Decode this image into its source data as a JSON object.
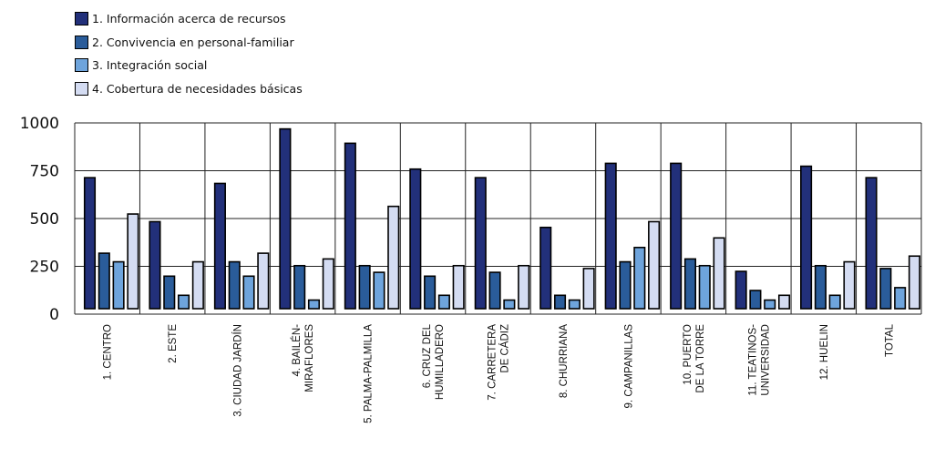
{
  "chart_data": {
    "type": "bar",
    "title": "",
    "xlabel": "",
    "ylabel": "",
    "ylim": [
      0,
      1000
    ],
    "yticks": [
      "0",
      "250",
      "500",
      "750",
      "1000"
    ],
    "grid": true,
    "legend_position": "top-left",
    "colors": [
      "#22307a",
      "#2a5c9a",
      "#6ea4dc",
      "#d4dcf2"
    ],
    "categories": [
      [
        "1. CENTRO"
      ],
      [
        "2. ESTE"
      ],
      [
        "3. CIUDAD JARDÍN"
      ],
      [
        "4. BAILÉN-",
        "MIRAFLORES"
      ],
      [
        "5. PALMA-PALMILLA"
      ],
      [
        "6. CRUZ DEL",
        "HUMILLADERO"
      ],
      [
        "7. CARRETERA",
        "DE CÁDIZ"
      ],
      [
        "8. CHURRIANA"
      ],
      [
        "9. CAMPANILLAS"
      ],
      [
        "10. PUERTO",
        "DE LA TORRE"
      ],
      [
        "11. TEATINOS-",
        "UNIVERSIDAD"
      ],
      [
        "12. HUELIN"
      ],
      [
        "TOTAL"
      ]
    ],
    "series": [
      {
        "name": "1. Información acerca de recursos",
        "values": [
          685,
          455,
          655,
          940,
          865,
          730,
          685,
          425,
          760,
          760,
          195,
          745,
          685
        ]
      },
      {
        "name": "2. Convivencia en personal-familiar",
        "values": [
          290,
          170,
          245,
          225,
          225,
          170,
          190,
          70,
          245,
          260,
          95,
          225,
          210
        ]
      },
      {
        "name": "3. Integración social",
        "values": [
          245,
          70,
          170,
          45,
          190,
          70,
          45,
          45,
          320,
          225,
          45,
          70,
          110
        ]
      },
      {
        "name": "4. Cobertura de necesidades básicas",
        "values": [
          495,
          245,
          290,
          260,
          535,
          225,
          225,
          210,
          455,
          370,
          70,
          245,
          275
        ]
      }
    ]
  }
}
